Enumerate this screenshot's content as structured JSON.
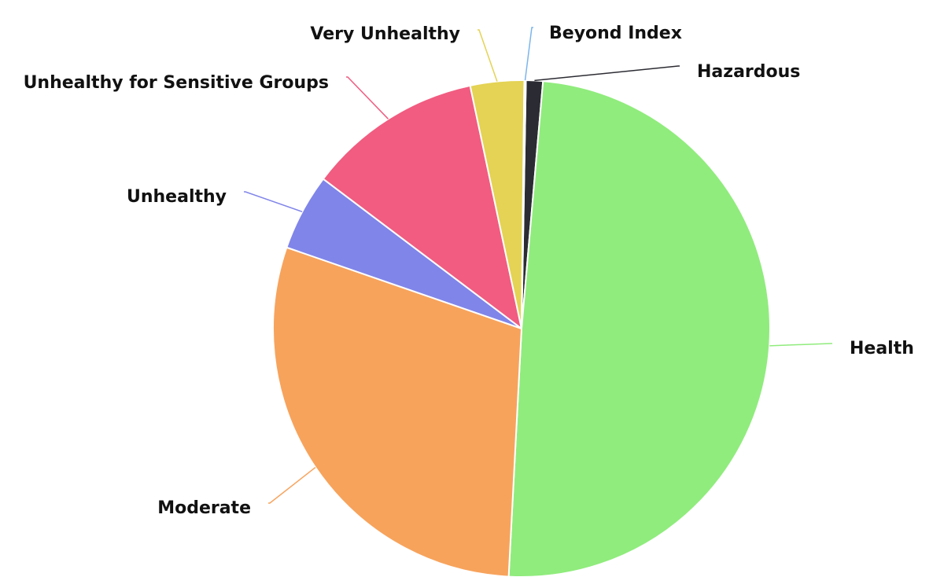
{
  "chart_data": {
    "type": "pie",
    "title": "",
    "slices": [
      {
        "label": "Health",
        "value": 49.5,
        "color": "#90ec7d"
      },
      {
        "label": "Moderate",
        "value": 29.5,
        "color": "#f7a35c"
      },
      {
        "label": "Unhealthy",
        "value": 5.0,
        "color": "#8085e9"
      },
      {
        "label": "Unhealthy for Sensitive Groups",
        "value": 11.4,
        "color": "#f15c80"
      },
      {
        "label": "Very Unhealthy",
        "value": 3.5,
        "color": "#e4d354"
      },
      {
        "label": "Beyond Index",
        "value": 0.1,
        "color": "#7cb5ec"
      },
      {
        "label": "Hazardous",
        "value": 1.1,
        "color": "#2b2b33"
      }
    ],
    "legend": "none",
    "data_labels": "outside-with-connectors"
  }
}
